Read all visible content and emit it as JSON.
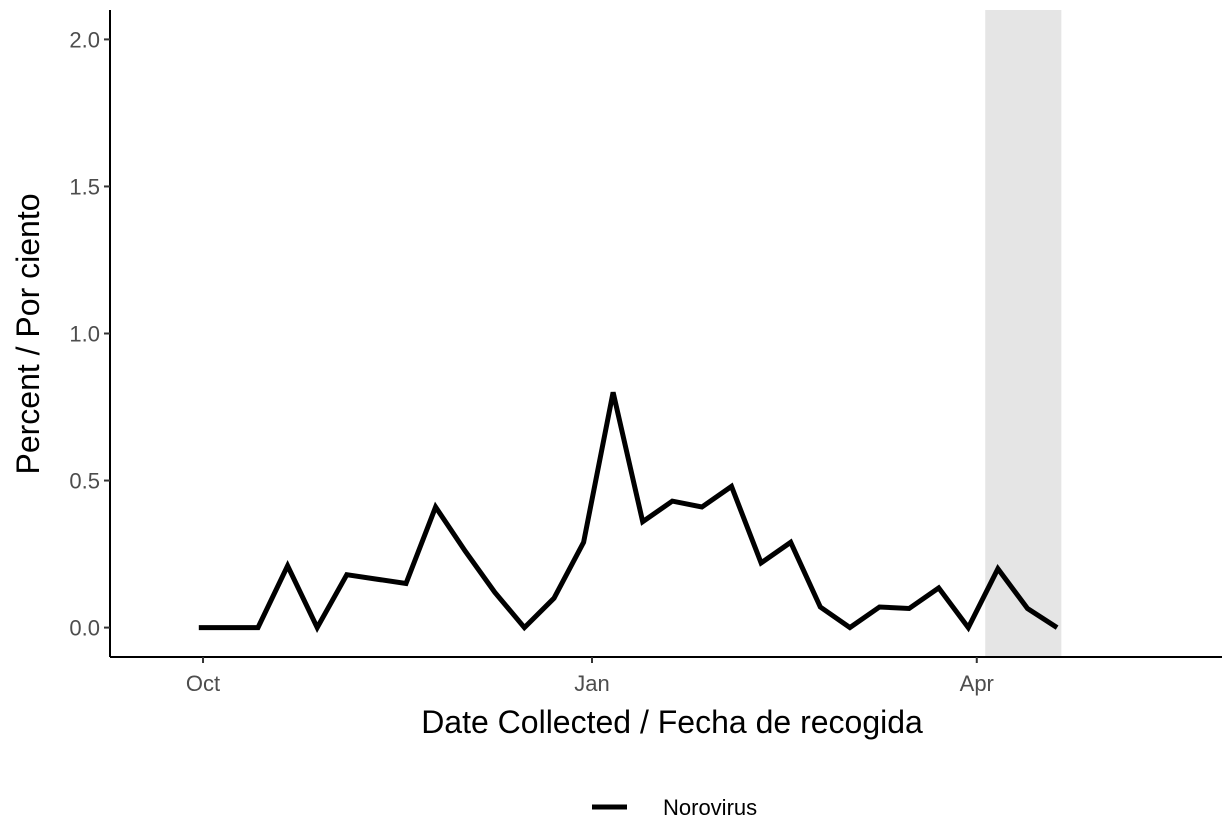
{
  "chart_data": {
    "type": "line",
    "xlabel": "Date Collected / Fecha de recogida",
    "ylabel": "Percent / Por ciento",
    "x_ticks": [
      {
        "label": "Oct",
        "date": "2023-10-01"
      },
      {
        "label": "Jan",
        "date": "2024-01-01"
      },
      {
        "label": "Apr",
        "date": "2024-04-01"
      }
    ],
    "y_ticks": [
      "0.0",
      "0.5",
      "1.0",
      "1.5",
      "2.0"
    ],
    "xlim": [
      "2023-09-09",
      "2024-05-29"
    ],
    "ylim": [
      -0.1,
      2.1
    ],
    "grid": false,
    "legend_position": "bottom",
    "shaded_period": {
      "start": "2024-04-03",
      "end": "2024-04-21",
      "color": "#e5e5e5"
    },
    "series": [
      {
        "name": "Norovirus",
        "color": "#000000",
        "points": [
          {
            "date": "2023-09-30",
            "value": 0.0
          },
          {
            "date": "2023-10-07",
            "value": 0.0
          },
          {
            "date": "2023-10-14",
            "value": 0.0
          },
          {
            "date": "2023-10-21",
            "value": 0.21
          },
          {
            "date": "2023-10-28",
            "value": 0.0
          },
          {
            "date": "2023-11-04",
            "value": 0.18
          },
          {
            "date": "2023-11-11",
            "value": 0.165
          },
          {
            "date": "2023-11-18",
            "value": 0.15
          },
          {
            "date": "2023-11-25",
            "value": 0.41
          },
          {
            "date": "2023-12-02",
            "value": 0.26
          },
          {
            "date": "2023-12-09",
            "value": 0.12
          },
          {
            "date": "2023-12-16",
            "value": 0.0
          },
          {
            "date": "2023-12-23",
            "value": 0.1
          },
          {
            "date": "2023-12-30",
            "value": 0.29
          },
          {
            "date": "2024-01-06",
            "value": 0.8
          },
          {
            "date": "2024-01-13",
            "value": 0.36
          },
          {
            "date": "2024-01-20",
            "value": 0.43
          },
          {
            "date": "2024-01-27",
            "value": 0.41
          },
          {
            "date": "2024-02-03",
            "value": 0.48
          },
          {
            "date": "2024-02-10",
            "value": 0.22
          },
          {
            "date": "2024-02-17",
            "value": 0.29
          },
          {
            "date": "2024-02-24",
            "value": 0.07
          },
          {
            "date": "2024-03-02",
            "value": 0.0
          },
          {
            "date": "2024-03-09",
            "value": 0.07
          },
          {
            "date": "2024-03-16",
            "value": 0.065
          },
          {
            "date": "2024-03-23",
            "value": 0.135
          },
          {
            "date": "2024-03-30",
            "value": 0.0
          },
          {
            "date": "2024-04-06",
            "value": 0.2
          },
          {
            "date": "2024-04-13",
            "value": 0.065
          },
          {
            "date": "2024-04-20",
            "value": 0.0
          }
        ]
      }
    ]
  }
}
